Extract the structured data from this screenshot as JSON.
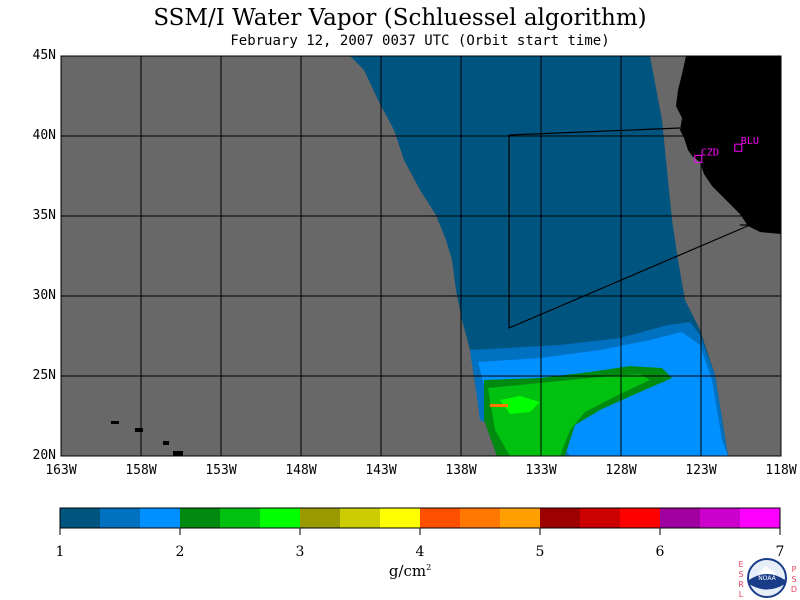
{
  "title": "SSM/I Water Vapor (Schluessel algorithm)",
  "subtitle": "February 12, 2007  0037 UTC  (Orbit start time)",
  "map": {
    "lat_range": [
      20,
      45
    ],
    "lon_range": [
      -163,
      -118
    ],
    "lat_labels": [
      "45N",
      "40N",
      "35N",
      "30N",
      "25N",
      "20N"
    ],
    "lon_labels": [
      "163W",
      "158W",
      "153W",
      "148W",
      "143W",
      "138W",
      "133W",
      "128W",
      "123W",
      "118W"
    ],
    "colors": {
      "ocean_no_data": "#686868",
      "land": "#000000",
      "gridline": "#000000",
      "station_marker": "#ff00ff"
    },
    "stations": [
      {
        "label": "CZD",
        "lat": 38.6,
        "lon": -123.2
      },
      {
        "label": "BLU",
        "lat": 39.3,
        "lon": -120.7
      }
    ]
  },
  "colorbar": {
    "min": 1,
    "max": 7,
    "tick_labels": [
      "1",
      "2",
      "3",
      "4",
      "5",
      "6",
      "7"
    ],
    "units_main": "g/cm",
    "units_sup": "2",
    "colors": [
      "#005480",
      "#0070c0",
      "#0090ff",
      "#008a10",
      "#00c010",
      "#00ff00",
      "#9a9a00",
      "#cccc00",
      "#ffff00",
      "#ff5000",
      "#ff7800",
      "#ffa000",
      "#9c0000",
      "#cc0000",
      "#ff0000",
      "#a000a0",
      "#cc00cc",
      "#ff00ff"
    ]
  },
  "logo": {
    "left_letters": [
      "E",
      "S",
      "R",
      "L"
    ],
    "right_letters": [
      "P",
      "S",
      "D"
    ],
    "center_text": "NOAA"
  }
}
